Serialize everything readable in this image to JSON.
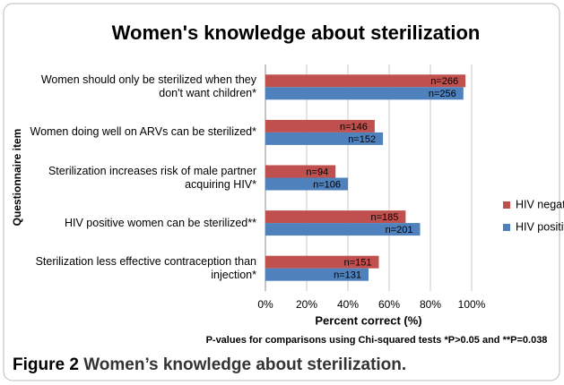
{
  "chart_data": {
    "type": "hbar",
    "title": "Women's knowledge about sterilization",
    "x_label": "Percent correct (%)",
    "y_label": "Questionnaire item",
    "footnote": "P-values for comparisons using Chi-squared tests *P>0.05 and **P=0.038",
    "caption": {
      "label": "Figure 2",
      "text": "Women’s knowledge about sterilization."
    },
    "categories": [
      "Women should only be sterilized when they don't want children*",
      "Women doing well on ARVs can be sterilized*",
      "Sterilization increases risk of male partner acquiring HIV*",
      "HIV positive women can be sterilized**",
      "Sterilization less effective contraception than injection*"
    ],
    "series": [
      {
        "name": "HIV negative",
        "color": "#c0504d",
        "values": [
          97,
          53,
          34,
          68,
          55
        ],
        "bar_labels": [
          "n=266",
          "n=146",
          "n=94",
          "n=185",
          "n=151"
        ]
      },
      {
        "name": "HIV positive",
        "color": "#4f81bd",
        "values": [
          96,
          57,
          40,
          75,
          50
        ],
        "bar_labels": [
          "n=256",
          "n=152",
          "n=106",
          "n=201",
          "n=131"
        ]
      }
    ],
    "xlim": [
      0,
      100
    ],
    "xticks": [
      {
        "value": 0,
        "label": "0%"
      },
      {
        "value": 20,
        "label": "20%"
      },
      {
        "value": 40,
        "label": "40%"
      },
      {
        "value": 60,
        "label": "60%"
      },
      {
        "value": 80,
        "label": "80%"
      },
      {
        "value": 100,
        "label": "100%"
      }
    ],
    "grid": true,
    "legend": "right"
  }
}
